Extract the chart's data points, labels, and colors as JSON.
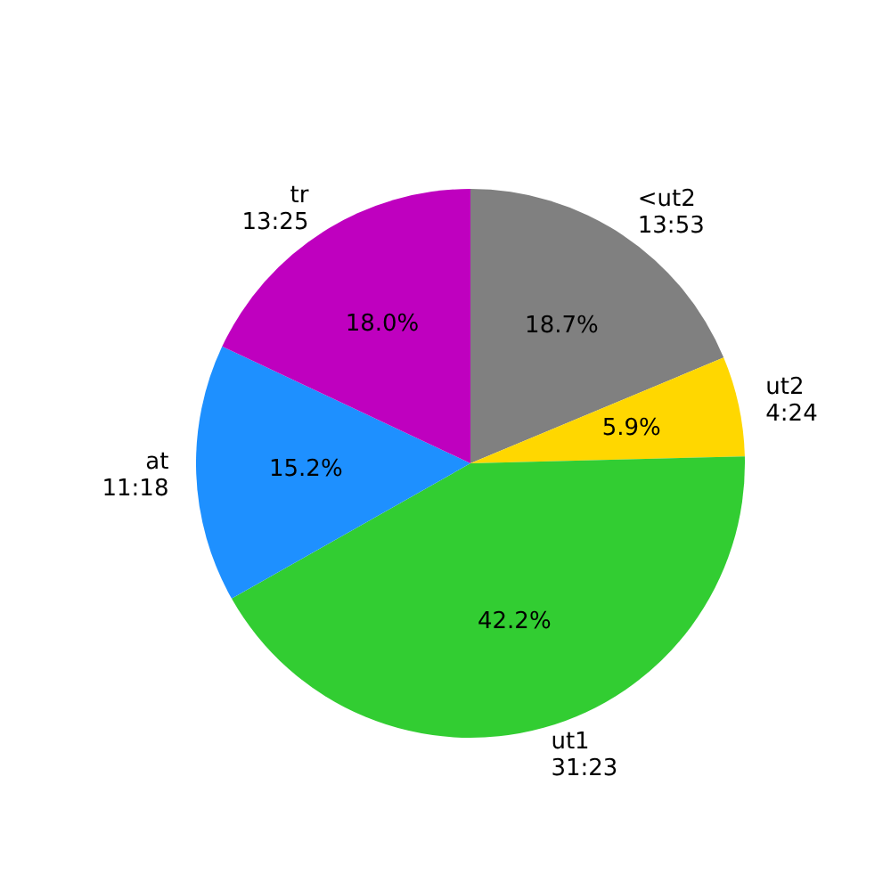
{
  "chart_data": {
    "type": "pie",
    "categories": [
      "<ut2\n13:53",
      "ut2\n4:24",
      "ut1\n31:23",
      "at\n11:18",
      "tr\n13:25"
    ],
    "values": [
      18.7,
      5.9,
      42.2,
      15.2,
      18.0
    ],
    "value_labels": [
      "18.7%",
      "5.9%",
      "42.2%",
      "15.2%",
      "18.0%"
    ],
    "colors": [
      "#808080",
      "#ffd700",
      "#32cd32",
      "#1e90ff",
      "#bf00bf"
    ]
  }
}
